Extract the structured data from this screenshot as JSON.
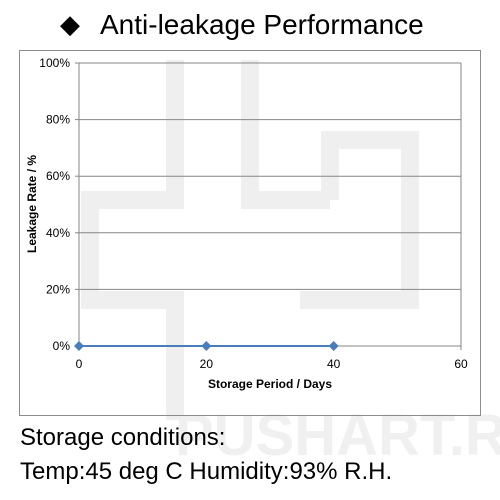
{
  "header": {
    "bullet": "◆",
    "title": "Anti-leakage Performance"
  },
  "chart_data": {
    "type": "line",
    "title": "Anti-leakage Performance",
    "xlabel": "Storage Period / Days",
    "ylabel": "Leakage Rate / %",
    "x": [
      0,
      20,
      40
    ],
    "series": [
      {
        "values": [
          0,
          0,
          0
        ]
      }
    ],
    "xlim": [
      0,
      60
    ],
    "ylim": [
      0,
      100
    ],
    "x_ticks": [
      "0",
      "20",
      "40",
      "60"
    ],
    "y_ticks": [
      "0%",
      "20%",
      "40%",
      "60%",
      "80%",
      "100%"
    ],
    "grid": "horizontal",
    "legend": "none",
    "colors": {
      "series": "#4a7ebb",
      "grid": "#868686",
      "axis": "#868686"
    },
    "marker": "diamond"
  },
  "conditions": {
    "line1": "Storage conditions:",
    "line2": "Temp:45 deg C  Humidity:93% R.H."
  },
  "watermark": "PUSHART.RU"
}
